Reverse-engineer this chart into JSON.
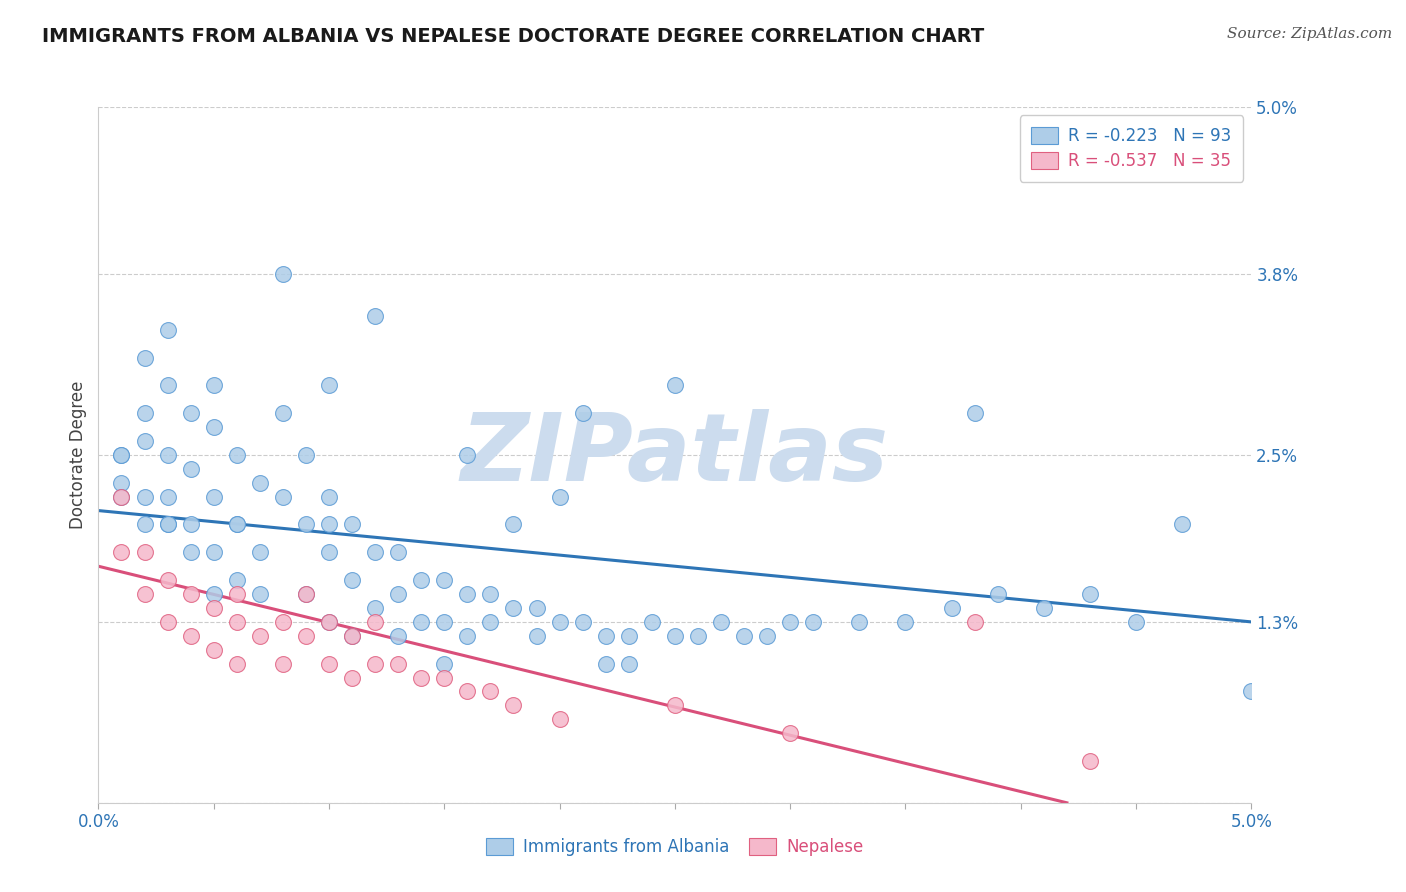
{
  "title": "IMMIGRANTS FROM ALBANIA VS NEPALESE DOCTORATE DEGREE CORRELATION CHART",
  "source": "Source: ZipAtlas.com",
  "ylabel": "Doctorate Degree",
  "xlim": [
    0.0,
    0.05
  ],
  "ylim": [
    0.0,
    0.05
  ],
  "yticks": [
    0.0,
    0.013,
    0.025,
    0.038,
    0.05
  ],
  "ytick_labels": [
    "",
    "1.3%",
    "2.5%",
    "3.8%",
    "5.0%"
  ],
  "xtick_vals_count": 11,
  "xtick_labels": [
    "0.0%",
    "",
    "",
    "",
    "",
    "",
    "",
    "",
    "",
    "",
    "5.0%"
  ],
  "blue_label": "Immigrants from Albania",
  "pink_label": "Nepalese",
  "blue_r": "R = -0.223",
  "blue_n": "N = 93",
  "pink_r": "R = -0.537",
  "pink_n": "N = 35",
  "blue_scatter_color": "#aecde8",
  "pink_scatter_color": "#f5b8cb",
  "blue_edge_color": "#5b9bd5",
  "pink_edge_color": "#e06080",
  "blue_line_color": "#2e75b6",
  "pink_line_color": "#d94f7a",
  "background_color": "#ffffff",
  "watermark_color": "#ccdcee",
  "title_fontsize": 14,
  "source_fontsize": 11,
  "axis_label_fontsize": 12,
  "tick_fontsize": 12,
  "legend_fontsize": 12,
  "blue_line_x0": 0.0,
  "blue_line_y0": 0.021,
  "blue_line_x1": 0.05,
  "blue_line_y1": 0.013,
  "pink_line_x0": 0.0,
  "pink_line_y0": 0.017,
  "pink_line_x1": 0.042,
  "pink_line_y1": 0.0,
  "blue_x": [
    0.001,
    0.001,
    0.001,
    0.001,
    0.002,
    0.002,
    0.002,
    0.002,
    0.002,
    0.003,
    0.003,
    0.003,
    0.003,
    0.003,
    0.004,
    0.004,
    0.004,
    0.004,
    0.005,
    0.005,
    0.005,
    0.005,
    0.005,
    0.006,
    0.006,
    0.006,
    0.007,
    0.007,
    0.008,
    0.008,
    0.008,
    0.009,
    0.009,
    0.009,
    0.01,
    0.01,
    0.01,
    0.01,
    0.011,
    0.011,
    0.011,
    0.012,
    0.012,
    0.012,
    0.013,
    0.013,
    0.013,
    0.014,
    0.014,
    0.015,
    0.015,
    0.015,
    0.016,
    0.016,
    0.016,
    0.017,
    0.017,
    0.018,
    0.018,
    0.019,
    0.019,
    0.02,
    0.02,
    0.021,
    0.021,
    0.022,
    0.022,
    0.023,
    0.023,
    0.024,
    0.025,
    0.026,
    0.027,
    0.028,
    0.029,
    0.03,
    0.031,
    0.033,
    0.035,
    0.037,
    0.039,
    0.041,
    0.043,
    0.045,
    0.047,
    0.01,
    0.025,
    0.006,
    0.046,
    0.05,
    0.003,
    0.007,
    0.038
  ],
  "blue_y": [
    0.025,
    0.023,
    0.025,
    0.022,
    0.032,
    0.028,
    0.026,
    0.022,
    0.02,
    0.034,
    0.03,
    0.025,
    0.02,
    0.022,
    0.028,
    0.024,
    0.02,
    0.018,
    0.03,
    0.027,
    0.022,
    0.018,
    0.015,
    0.025,
    0.02,
    0.016,
    0.023,
    0.018,
    0.028,
    0.022,
    0.038,
    0.025,
    0.02,
    0.015,
    0.022,
    0.018,
    0.013,
    0.03,
    0.02,
    0.016,
    0.012,
    0.018,
    0.014,
    0.035,
    0.018,
    0.015,
    0.012,
    0.016,
    0.013,
    0.016,
    0.013,
    0.01,
    0.015,
    0.012,
    0.025,
    0.015,
    0.013,
    0.014,
    0.02,
    0.014,
    0.012,
    0.013,
    0.022,
    0.013,
    0.028,
    0.012,
    0.01,
    0.012,
    0.01,
    0.013,
    0.012,
    0.012,
    0.013,
    0.012,
    0.012,
    0.013,
    0.013,
    0.013,
    0.013,
    0.014,
    0.015,
    0.014,
    0.015,
    0.013,
    0.02,
    0.02,
    0.03,
    0.02,
    0.046,
    0.008,
    0.02,
    0.015,
    0.028
  ],
  "pink_x": [
    0.001,
    0.001,
    0.002,
    0.002,
    0.003,
    0.003,
    0.004,
    0.004,
    0.005,
    0.005,
    0.006,
    0.006,
    0.006,
    0.007,
    0.008,
    0.008,
    0.009,
    0.009,
    0.01,
    0.01,
    0.011,
    0.011,
    0.012,
    0.012,
    0.013,
    0.014,
    0.015,
    0.016,
    0.017,
    0.018,
    0.02,
    0.025,
    0.03,
    0.038,
    0.043
  ],
  "pink_y": [
    0.022,
    0.018,
    0.018,
    0.015,
    0.016,
    0.013,
    0.015,
    0.012,
    0.014,
    0.011,
    0.013,
    0.01,
    0.015,
    0.012,
    0.013,
    0.01,
    0.012,
    0.015,
    0.01,
    0.013,
    0.012,
    0.009,
    0.01,
    0.013,
    0.01,
    0.009,
    0.009,
    0.008,
    0.008,
    0.007,
    0.006,
    0.007,
    0.005,
    0.013,
    0.003
  ]
}
